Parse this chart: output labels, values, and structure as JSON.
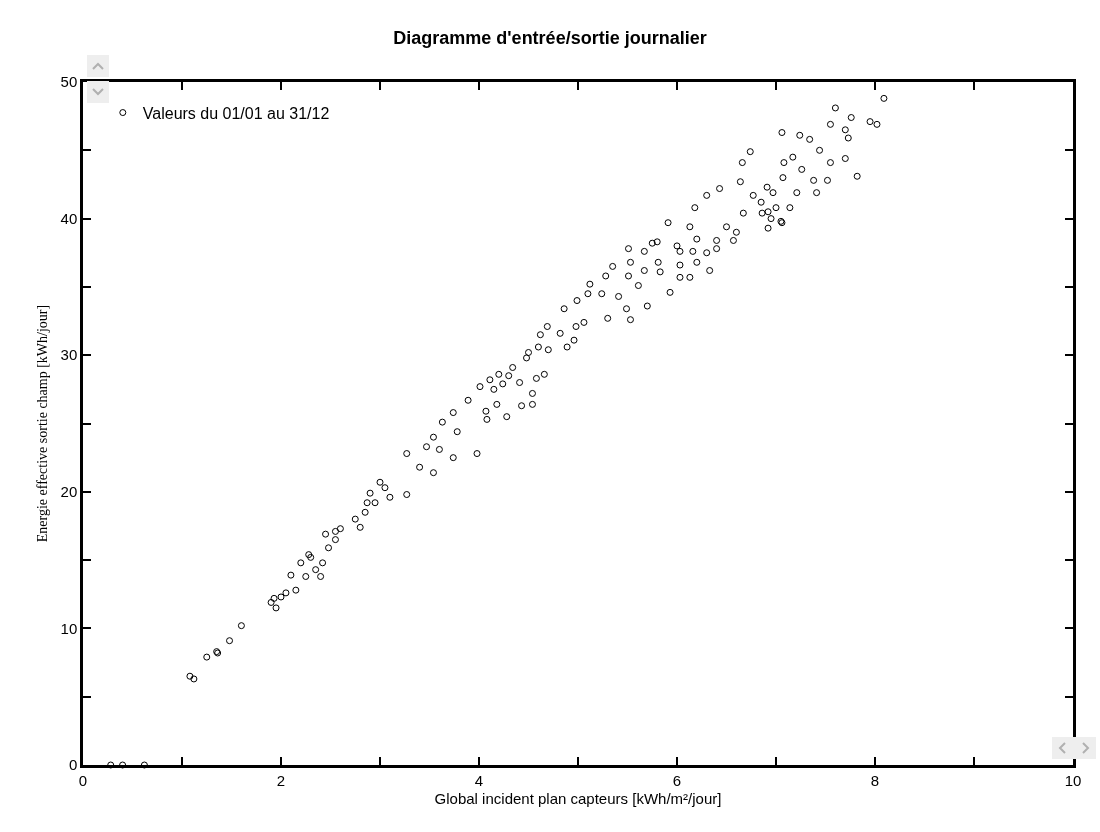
{
  "chart_data": {
    "type": "scatter",
    "title": "Diagramme d'entrée/sortie journalier",
    "xlabel": "Global incident plan capteurs [kWh/m²/jour]",
    "ylabel": "Energie effective sortie champ [kWh/jour]",
    "xlim": [
      0,
      10
    ],
    "ylim": [
      0,
      50
    ],
    "xticks": [
      0,
      {
        "value": 1,
        "label": null
      },
      2,
      {
        "value": 3,
        "label": null
      },
      4,
      {
        "value": 5,
        "label": null
      },
      6,
      {
        "value": 7,
        "label": null
      },
      8,
      {
        "value": 9,
        "label": null
      },
      10
    ],
    "yticks": [
      0,
      {
        "value": 5,
        "label": null
      },
      10,
      {
        "value": 15,
        "label": null
      },
      20,
      {
        "value": 25,
        "label": null
      },
      30,
      {
        "value": 35,
        "label": null
      },
      40,
      {
        "value": 45,
        "label": null
      },
      50
    ],
    "grid": false,
    "legend": "top left",
    "marker": "circle",
    "series": [
      {
        "name": "Valeurs du 01/01 au 31/12",
        "color": "#000000",
        "x": [
          0.28,
          0.4,
          0.62,
          1.08,
          1.12,
          1.25,
          1.35,
          1.36,
          1.48,
          1.6,
          1.9,
          1.93,
          1.95,
          2.0,
          2.05,
          2.1,
          2.15,
          2.2,
          2.25,
          2.28,
          2.3,
          2.35,
          2.4,
          2.42,
          2.48,
          2.45,
          2.55,
          2.55,
          2.6,
          2.75,
          2.8,
          2.85,
          2.9,
          2.95,
          3.05,
          2.87,
          3.0,
          3.1,
          3.27,
          3.27,
          3.4,
          3.47,
          3.54,
          3.54,
          3.6,
          3.63,
          3.74,
          3.78,
          3.74,
          3.98,
          3.89,
          4.07,
          4.08,
          4.18,
          4.28,
          4.01,
          4.11,
          4.2,
          4.3,
          4.34,
          4.15,
          4.24,
          4.41,
          4.43,
          4.54,
          4.54,
          4.58,
          4.66,
          4.48,
          4.5,
          4.6,
          4.62,
          4.69,
          4.7,
          4.82,
          4.89,
          4.96,
          4.86,
          4.98,
          4.99,
          5.06,
          5.1,
          5.12,
          5.24,
          5.3,
          5.28,
          5.41,
          5.51,
          5.53,
          5.49,
          5.53,
          5.35,
          5.61,
          5.7,
          5.67,
          5.51,
          5.67,
          5.8,
          5.81,
          5.83,
          5.91,
          5.93,
          6.03,
          6.03,
          6.03,
          6.13,
          6.16,
          6.2,
          6.13,
          6.18,
          6.3,
          6.33,
          6.3,
          6.4,
          6.43,
          6.5,
          6.57,
          6.64,
          6.67,
          6.66,
          6.74,
          6.77,
          6.86,
          6.92,
          6.92,
          6.91,
          6.97,
          7.06,
          7.07,
          7.06,
          7.08,
          7.14,
          7.17,
          7.21,
          7.24,
          7.26,
          7.34,
          7.38,
          7.41,
          7.44,
          7.52,
          7.55,
          7.55,
          7.6,
          7.7,
          7.7,
          7.76,
          7.73,
          7.82,
          7.95,
          8.02,
          8.09,
          6.95,
          7.0,
          7.05,
          6.85,
          6.6,
          6.4,
          6.2,
          6.0,
          5.75
        ],
        "values": [
          0,
          0,
          0,
          6.5,
          6.3,
          7.9,
          8.3,
          8.2,
          9.1,
          10.2,
          11.9,
          12.2,
          11.5,
          12.3,
          12.6,
          13.9,
          12.8,
          14.8,
          13.8,
          15.4,
          15.2,
          14.3,
          13.8,
          14.8,
          15.9,
          16.9,
          17.1,
          16.5,
          17.3,
          18.0,
          17.4,
          18.5,
          19.9,
          19.2,
          20.3,
          19.2,
          20.7,
          19.6,
          22.8,
          19.8,
          21.8,
          23.3,
          24.0,
          21.4,
          23.1,
          25.1,
          25.8,
          24.4,
          22.5,
          22.8,
          26.7,
          25.9,
          25.3,
          26.4,
          25.5,
          27.7,
          28.2,
          28.6,
          28.5,
          29.1,
          27.5,
          27.9,
          28.0,
          26.3,
          26.4,
          27.2,
          28.3,
          28.6,
          29.8,
          30.2,
          30.6,
          31.5,
          32.1,
          30.4,
          31.6,
          30.6,
          31.1,
          33.4,
          32.1,
          34.0,
          32.4,
          34.5,
          35.2,
          34.5,
          32.7,
          35.8,
          34.3,
          35.8,
          36.8,
          33.4,
          32.6,
          36.5,
          35.1,
          33.6,
          36.2,
          37.8,
          37.6,
          38.3,
          36.8,
          36.1,
          39.7,
          34.6,
          37.6,
          36.6,
          35.7,
          35.7,
          37.6,
          36.8,
          39.4,
          40.8,
          41.7,
          36.2,
          37.5,
          38.4,
          42.2,
          39.4,
          38.4,
          42.7,
          40.4,
          44.1,
          44.9,
          41.7,
          40.4,
          40.5,
          39.3,
          42.3,
          41.9,
          39.7,
          43.0,
          46.3,
          44.1,
          40.8,
          44.5,
          41.9,
          46.1,
          43.6,
          45.8,
          42.8,
          41.9,
          45.0,
          42.8,
          44.1,
          46.9,
          48.1,
          44.4,
          46.5,
          47.4,
          45.9,
          43.1,
          47.1,
          46.9,
          48.8,
          40.0,
          40.8,
          39.8,
          41.2,
          39.0,
          37.8,
          38.5,
          38.0,
          38.2
        ]
      }
    ]
  }
}
